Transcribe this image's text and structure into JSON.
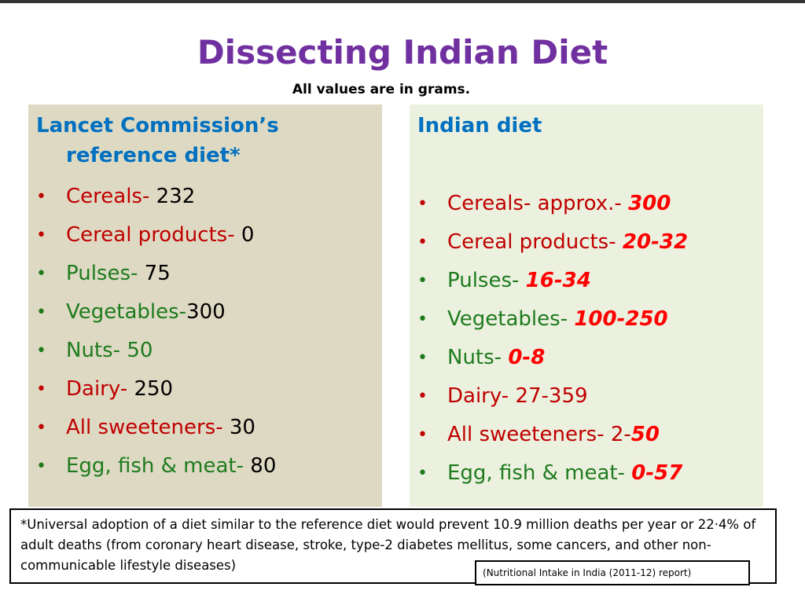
{
  "header": {
    "title": "Dissecting Indian Diet",
    "subtitle": "All values are in grams.",
    "title_color": "#7030a0"
  },
  "panels": [
    {
      "heading": "Lancet Commission’s reference diet*",
      "background": "#ddd9c3",
      "items": [
        {
          "label": "Cereals- ",
          "value": "232",
          "label_color": "#c00000",
          "value_color": "#000000",
          "emph": false
        },
        {
          "label": "Cereal products- ",
          "value": "0",
          "label_color": "#c00000",
          "value_color": "#000000",
          "emph": false
        },
        {
          "label": "Pulses- ",
          "value": "75",
          "label_color": "#1e7b1e",
          "value_color": "#000000",
          "emph": false
        },
        {
          "label": "Vegetables-",
          "value": "300",
          "label_color": "#1e7b1e",
          "value_color": "#000000",
          "emph": false
        },
        {
          "label": "Nuts- ",
          "value": "50",
          "label_color": "#1e7b1e",
          "value_color": "#1e7b1e",
          "emph": false
        },
        {
          "label": "Dairy- ",
          "value": "250",
          "label_color": "#c00000",
          "value_color": "#000000",
          "emph": false
        },
        {
          "label": "All sweeteners- ",
          "value": "30",
          "label_color": "#c00000",
          "value_color": "#000000",
          "emph": false
        },
        {
          "label": "Egg, fish & meat- ",
          "value": "80",
          "label_color": "#1e7b1e",
          "value_color": "#000000",
          "emph": false
        }
      ]
    },
    {
      "heading": "Indian diet",
      "background": "#ebf1de",
      "items": [
        {
          "label": "Cereals- approx.- ",
          "value": "300",
          "label_color": "#c00000",
          "value_color": "#ff0000",
          "emph": true
        },
        {
          "label": "Cereal products- ",
          "value": "20-32",
          "label_color": "#c00000",
          "value_color": "#ff0000",
          "emph": true
        },
        {
          "label": "Pulses- ",
          "value": "16-34",
          "label_color": "#1e7b1e",
          "value_color": "#ff0000",
          "emph": true
        },
        {
          "label": "Vegetables- ",
          "value": "100-250",
          "label_color": "#1e7b1e",
          "value_color": "#ff0000",
          "emph": true
        },
        {
          "label": "Nuts- ",
          "value": "0-8",
          "label_color": "#1e7b1e",
          "value_color": "#ff0000",
          "emph": true
        },
        {
          "label": "Dairy- ",
          "value": "27-359",
          "label_color": "#c00000",
          "value_color": "#c00000",
          "emph": false
        },
        {
          "label": "All sweeteners- 2-",
          "value": "50",
          "label_color": "#c00000",
          "value_color": "#ff0000",
          "emph": true
        },
        {
          "label": "Egg, fish & meat- ",
          "value": "0-57",
          "label_color": "#1e7b1e",
          "value_color": "#ff0000",
          "emph": true
        }
      ]
    }
  ],
  "footnote": "*Universal adoption of a diet similar to the reference diet would prevent 10.9 million deaths per year or 22·4% of adult deaths (from coronary heart disease, stroke, type-2 diabetes mellitus, some cancers, and other non-communicable lifestyle diseases)",
  "source": "Nutritional Intake in India (2011-12) report"
}
